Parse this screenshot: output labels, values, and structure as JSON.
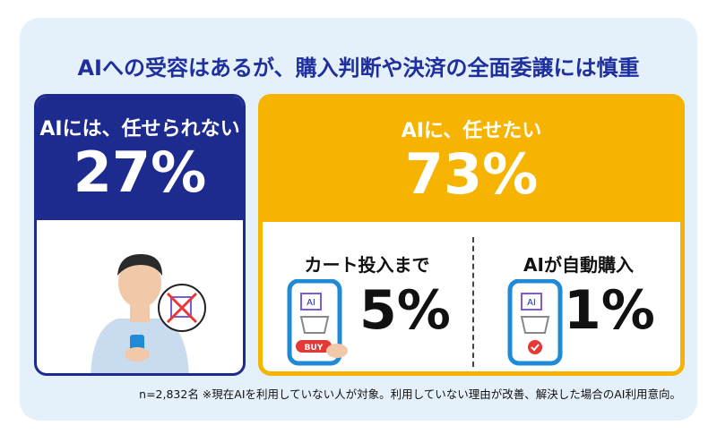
{
  "title": "AIへの受容はあるが、購入判断や決済の全面委譲には慎重",
  "left": {
    "heading": "AIには、任せられない",
    "percent": "27%"
  },
  "right": {
    "heading": "AIに、任せたい",
    "percent": "73%",
    "items": [
      {
        "label": "カート投入まで",
        "percent": "5%",
        "button": "BUY"
      },
      {
        "label": "AIが自動購入",
        "percent": "1%"
      }
    ]
  },
  "phone_badge": "AI",
  "footnote": "n=2,832名 ※現在AIを利用していない人が対象。利用していない理由が改善、解決した場合のAI利用意向。"
}
